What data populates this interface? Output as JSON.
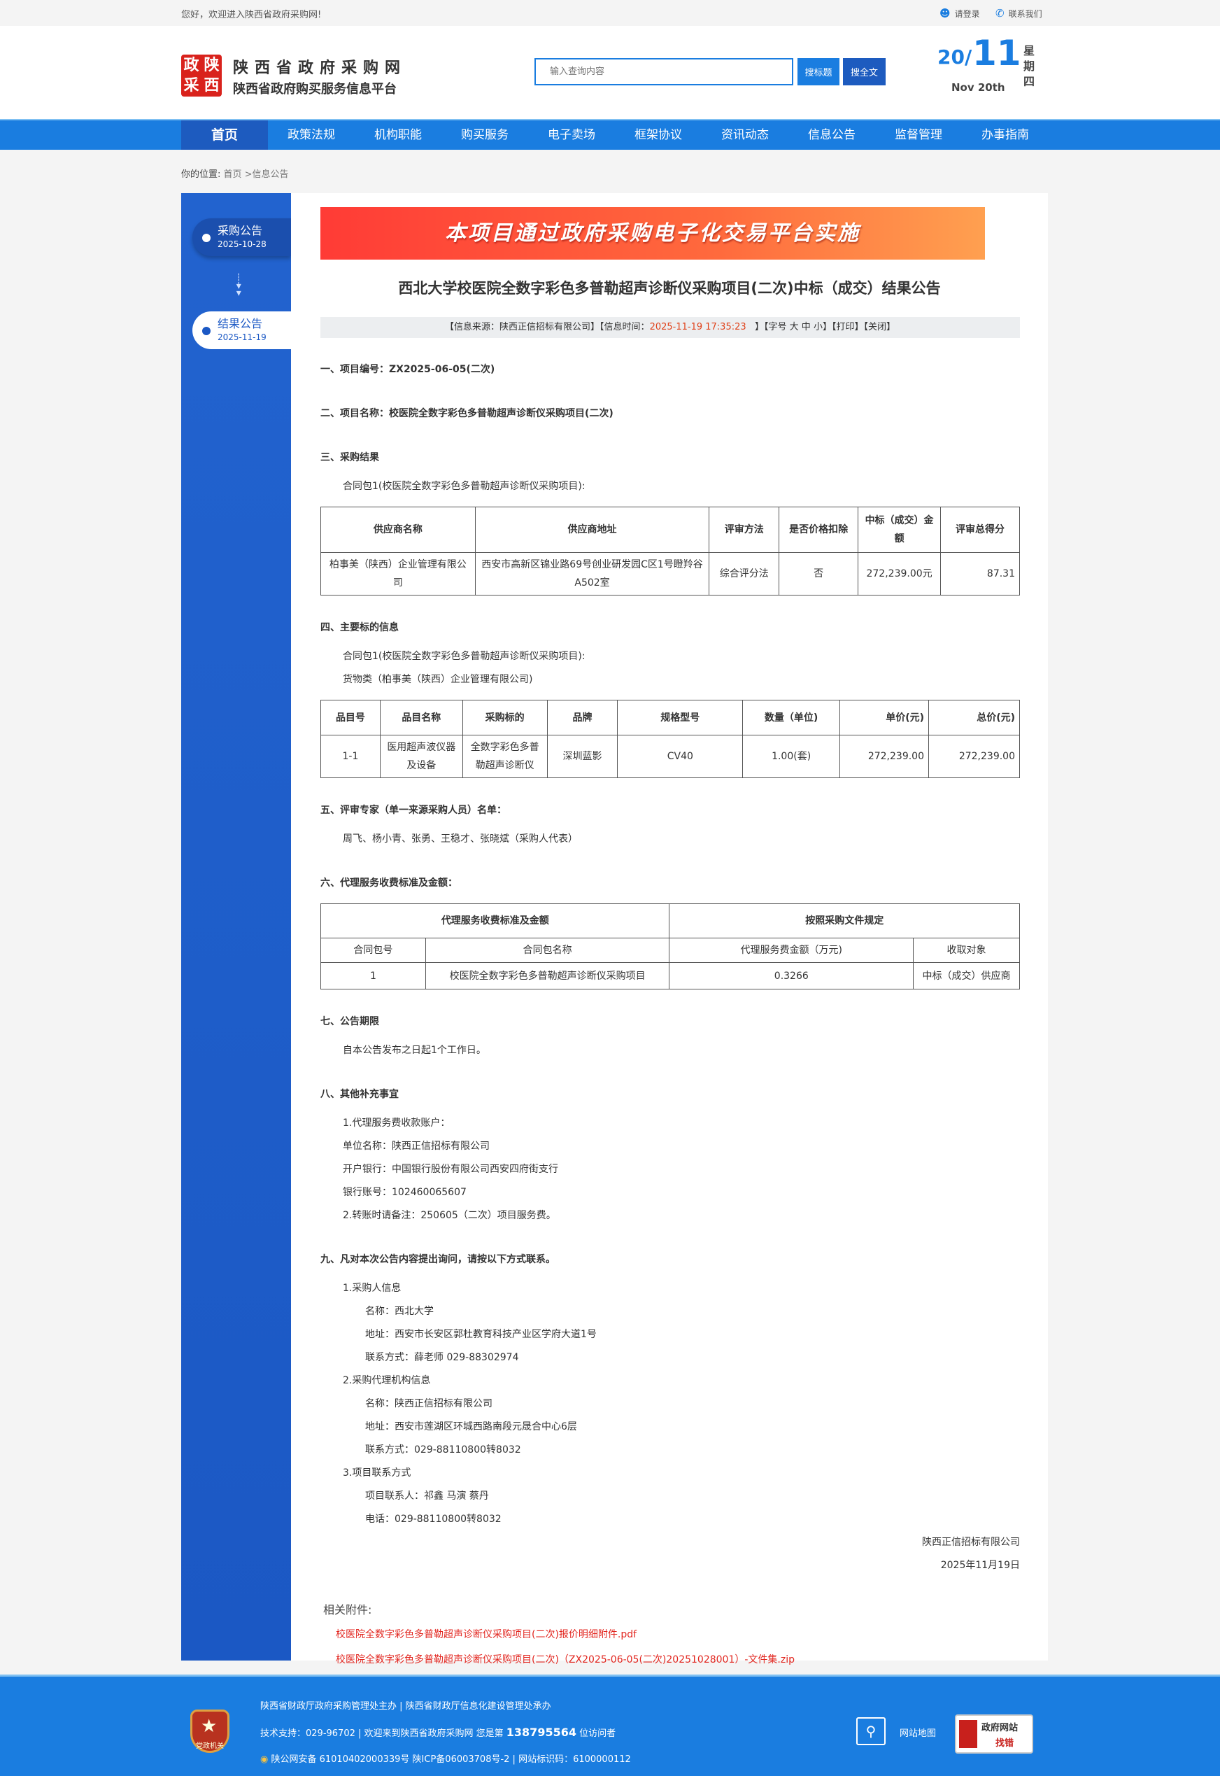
{
  "topbar": {
    "welcome": "您好，欢迎进入陕西省政府采购网!",
    "login": "请登录",
    "contact": "联系我们"
  },
  "header": {
    "logo_chars": [
      "政",
      "陕",
      "采",
      "西"
    ],
    "site_title": "陕西省政府采购网",
    "site_subtitle": "陕西省政府购买服务信息平台",
    "search_placeholder": "输入查询内容",
    "search_title_btn": "搜标题",
    "search_full_btn": "搜全文",
    "date_year": "20/",
    "date_month": "11",
    "date_en": "Nov 20th",
    "weekday": "星期四"
  },
  "nav": {
    "items": [
      "首页",
      "政策法规",
      "机构职能",
      "购买服务",
      "电子卖场",
      "框架协议",
      "资讯动态",
      "信息公告",
      "监督管理",
      "办事指南"
    ],
    "active": "首页"
  },
  "breadcrumb": {
    "label": "你的位置:",
    "path": "首页 >信息公告"
  },
  "sidebar": {
    "items": [
      {
        "label": "采购公告",
        "date": "2025-10-28"
      },
      {
        "label": "结果公告",
        "date": "2025-11-19"
      }
    ]
  },
  "article": {
    "banner": "本项目通过政府采购电子化交易平台实施",
    "title": "西北大学校医院全数字彩色多普勒超声诊断仪采购项目(二次)中标（成交）结果公告",
    "info": {
      "source": "【信息来源：陕西正信招标有限公司】【信息时间：",
      "time": "2025-11-19 17:35:23",
      "rest": "】【字号 大 中 小】【打印】【关闭】"
    },
    "s1": "一、项目编号：ZX2025-06-05(二次)",
    "s2": "二、项目名称：校医院全数字彩色多普勒超声诊断仪采购项目(二次)",
    "s3": "三、采购结果",
    "s3_pkg": "合同包1(校医院全数字彩色多普勒超声诊断仪采购项目):",
    "t1": {
      "headers": [
        "供应商名称",
        "供应商地址",
        "评审方法",
        "是否价格扣除",
        "中标（成交）金额",
        "评审总得分"
      ],
      "row": [
        "柏事美（陕西）企业管理有限公司",
        "西安市高新区锦业路69号创业研发园C区1号瞪羚谷A502室",
        "综合评分法",
        "否",
        "272,239.00元",
        "87.31"
      ]
    },
    "s4": "四、主要标的信息",
    "s4_pkg": "合同包1(校医院全数字彩色多普勒超声诊断仪采购项目):",
    "s4_cat": "货物类（柏事美（陕西）企业管理有限公司)",
    "t2": {
      "headers": [
        "品目号",
        "品目名称",
        "采购标的",
        "品牌",
        "规格型号",
        "数量（单位)",
        "单价(元)",
        "总价(元)"
      ],
      "row": [
        "1-1",
        "医用超声波仪器及设备",
        "全数字彩色多普勒超声诊断仪",
        "深圳蓝影",
        "CV40",
        "1.00(套)",
        "272,239.00",
        "272,239.00"
      ]
    },
    "s5": "五、评审专家（单一来源采购人员）名单：",
    "s5_names": "周飞、杨小青、张勇、王稳才、张晓斌（采购人代表）",
    "s6": "六、代理服务收费标准及金额：",
    "t3": {
      "top": [
        "代理服务收费标准及金额",
        "按照采购文件规定"
      ],
      "headers": [
        "合同包号",
        "合同包名称",
        "代理服务费金额（万元)",
        "收取对象"
      ],
      "row": [
        "1",
        "校医院全数字彩色多普勒超声诊断仪采购项目",
        "0.3266",
        "中标（成交）供应商"
      ]
    },
    "s7": "七、公告期限",
    "s7_text": "自本公告发布之日起1个工作日。",
    "s8": "八、其他补充事宜",
    "s8_lines": [
      "1.代理服务费收款账户：",
      "单位名称：陕西正信招标有限公司",
      "开户银行：中国银行股份有限公司西安四府街支行",
      "银行账号：102460065607",
      "2.转账时请备注：250605（二次）项目服务费。"
    ],
    "s9": "九、凡对本次公告内容提出询问，请按以下方式联系。",
    "s9_groups": [
      {
        "title": "1.采购人信息",
        "lines": [
          "名称：西北大学",
          "地址：西安市长安区郭杜教育科技产业区学府大道1号",
          "联系方式：薛老师 029-88302974"
        ]
      },
      {
        "title": "2.采购代理机构信息",
        "lines": [
          "名称：陕西正信招标有限公司",
          "地址：西安市莲湖区环城西路南段元晟合中心6层",
          "联系方式：029-88110800转8032"
        ]
      },
      {
        "title": "3.项目联系方式",
        "lines": [
          "项目联系人：祁鑫 马演 蔡丹",
          "电话：029-88110800转8032"
        ]
      }
    ],
    "signature": "陕西正信招标有限公司",
    "sign_date": "2025年11月19日",
    "attachments_label": "相关附件:",
    "attachments": [
      "校医院全数字彩色多普勒超声诊断仪采购项目(二次)报价明细附件.pdf",
      "校医院全数字彩色多普勒超声诊断仪采购项目(二次)（ZX2025-06-05(二次)20251028001）-文件集.zip"
    ]
  },
  "footer": {
    "line1": "陕西省财政厅政府采购管理处主办 | 陕西省财政厅信息化建设管理处承办",
    "line2_pre": "技术支持：029-96702 | 欢迎来到陕西省政府采购网 您是第 ",
    "visitors": "138795564",
    "line2_post": " 位访问者",
    "line3": "陕公网安备 61010402000339号   陕ICP备06003708号-2  |  网站标识码：6100000112",
    "badge": "党政机关",
    "sitemap": "网站地图",
    "find_error_top": "政府网站",
    "find_error_bottom": "找错"
  },
  "colors": {
    "brand_blue": "#1a7de0",
    "nav_active": "#1d5bbf",
    "sidebar": "#2263cf",
    "link_red": "#e2261f"
  }
}
